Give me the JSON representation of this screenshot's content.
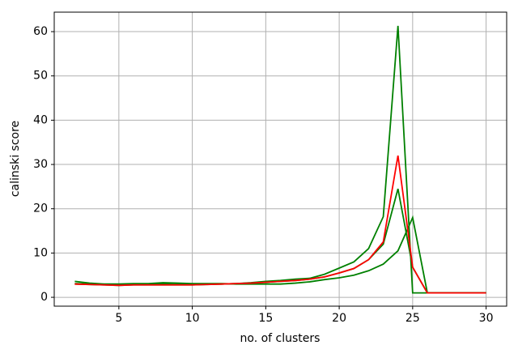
{
  "chart_data": {
    "type": "line",
    "xlabel": "no. of clusters",
    "ylabel": "calinski score",
    "x": [
      2,
      3,
      4,
      5,
      6,
      7,
      8,
      9,
      10,
      11,
      12,
      13,
      14,
      15,
      16,
      17,
      18,
      19,
      20,
      21,
      22,
      23,
      24,
      25,
      26,
      27,
      28,
      29,
      30
    ],
    "series": [
      {
        "color": "#008000",
        "values": [
          3.1,
          3.0,
          2.9,
          2.8,
          2.9,
          2.9,
          3.0,
          2.9,
          2.9,
          3.0,
          3.0,
          3.1,
          3.3,
          3.6,
          3.8,
          4.1,
          4.3,
          5.2,
          6.6,
          8.0,
          11.0,
          18.2,
          61.3,
          1.0,
          1.0,
          1.0,
          1.0,
          1.0,
          1.0
        ]
      },
      {
        "color": "#008000",
        "values": [
          3.0,
          2.9,
          2.8,
          2.7,
          2.8,
          2.8,
          2.8,
          2.8,
          2.8,
          2.9,
          3.0,
          3.1,
          3.2,
          3.4,
          3.6,
          3.8,
          4.1,
          4.6,
          5.5,
          6.5,
          8.5,
          12.0,
          24.5,
          6.8,
          1.0,
          1.0,
          1.0,
          1.0,
          1.0
        ]
      },
      {
        "color": "#008000",
        "values": [
          3.6,
          3.2,
          3.0,
          3.0,
          3.1,
          3.1,
          3.3,
          3.2,
          3.1,
          3.1,
          3.1,
          3.0,
          3.0,
          3.0,
          3.0,
          3.2,
          3.5,
          4.0,
          4.4,
          5.0,
          6.0,
          7.5,
          10.5,
          18.0,
          1.0,
          1.0,
          1.0,
          1.0,
          1.0
        ]
      },
      {
        "color": "#ff0000",
        "values": [
          3.0,
          2.9,
          2.8,
          2.7,
          2.8,
          2.8,
          2.8,
          2.8,
          2.8,
          2.9,
          3.0,
          3.1,
          3.2,
          3.4,
          3.6,
          3.8,
          4.1,
          4.6,
          5.5,
          6.5,
          8.5,
          12.5,
          32.0,
          6.8,
          1.0,
          1.0,
          1.0,
          1.0,
          1.0
        ]
      }
    ],
    "xlim": [
      0.6,
      31.4
    ],
    "xticks": [
      5,
      10,
      15,
      20,
      25,
      30
    ],
    "ylim": [
      -2.0,
      64.4
    ],
    "yticks": [
      0,
      10,
      20,
      30,
      40,
      50,
      60
    ],
    "grid": true
  }
}
